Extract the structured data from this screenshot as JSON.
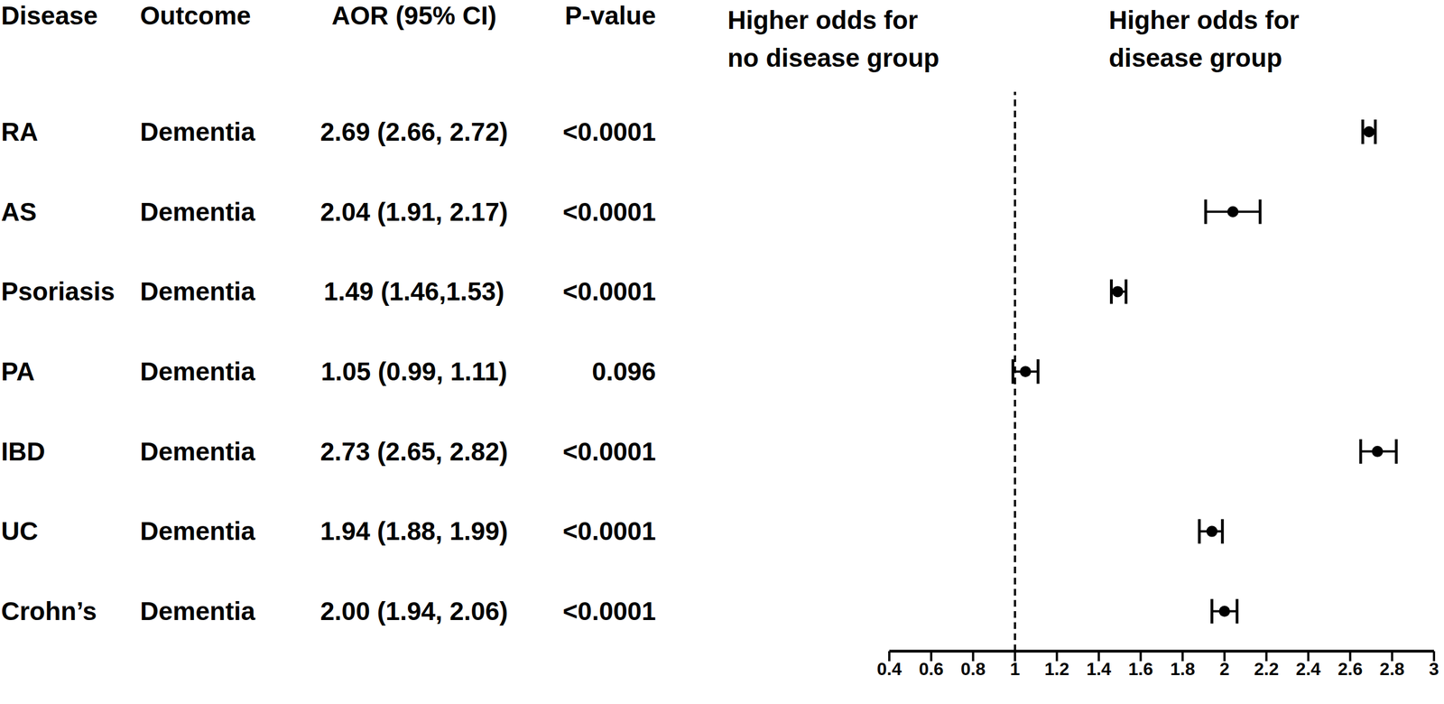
{
  "chart_data": {
    "type": "forest",
    "orientation": "horizontal",
    "columns": [
      "Disease",
      "Outcome",
      "AOR (95% CI)",
      "P-value"
    ],
    "annotations": [
      [
        "Higher odds for",
        "no disease group"
      ],
      [
        "Higher odds for",
        "disease group"
      ]
    ],
    "categories": [
      "RA",
      "AS",
      "Psoriasis",
      "PA",
      "IBD",
      "UC",
      "Crohn’s"
    ],
    "outcomes": [
      "Dementia",
      "Dementia",
      "Dementia",
      "Dementia",
      "Dementia",
      "Dementia",
      "Dementia"
    ],
    "values": [
      2.69,
      2.04,
      1.49,
      1.05,
      2.73,
      1.94,
      2.0
    ],
    "ci_low": [
      2.66,
      1.91,
      1.46,
      0.99,
      2.65,
      1.88,
      1.94
    ],
    "ci_high": [
      2.72,
      2.17,
      1.53,
      1.11,
      2.82,
      1.99,
      2.06
    ],
    "value_labels": [
      "2.69 (2.66, 2.72)",
      "2.04 (1.91, 2.17)",
      "1.49 (1.46,1.53)",
      "1.05 (0.99, 1.11)",
      "2.73 (2.65, 2.82)",
      "1.94 (1.88, 1.99)",
      "2.00 (1.94, 2.06)"
    ],
    "p_values": [
      "<0.0001",
      "<0.0001",
      "<0.0001",
      "0.096",
      "<0.0001",
      "<0.0001",
      "<0.0001"
    ],
    "reference_line": 1,
    "xlim": [
      0.4,
      3
    ],
    "xticks": [
      0.4,
      0.6,
      0.8,
      1,
      1.2,
      1.4,
      1.6,
      1.8,
      2,
      2.2,
      2.4,
      2.6,
      2.8,
      3
    ],
    "color": "#000000",
    "marker": "circle",
    "grid": false
  }
}
